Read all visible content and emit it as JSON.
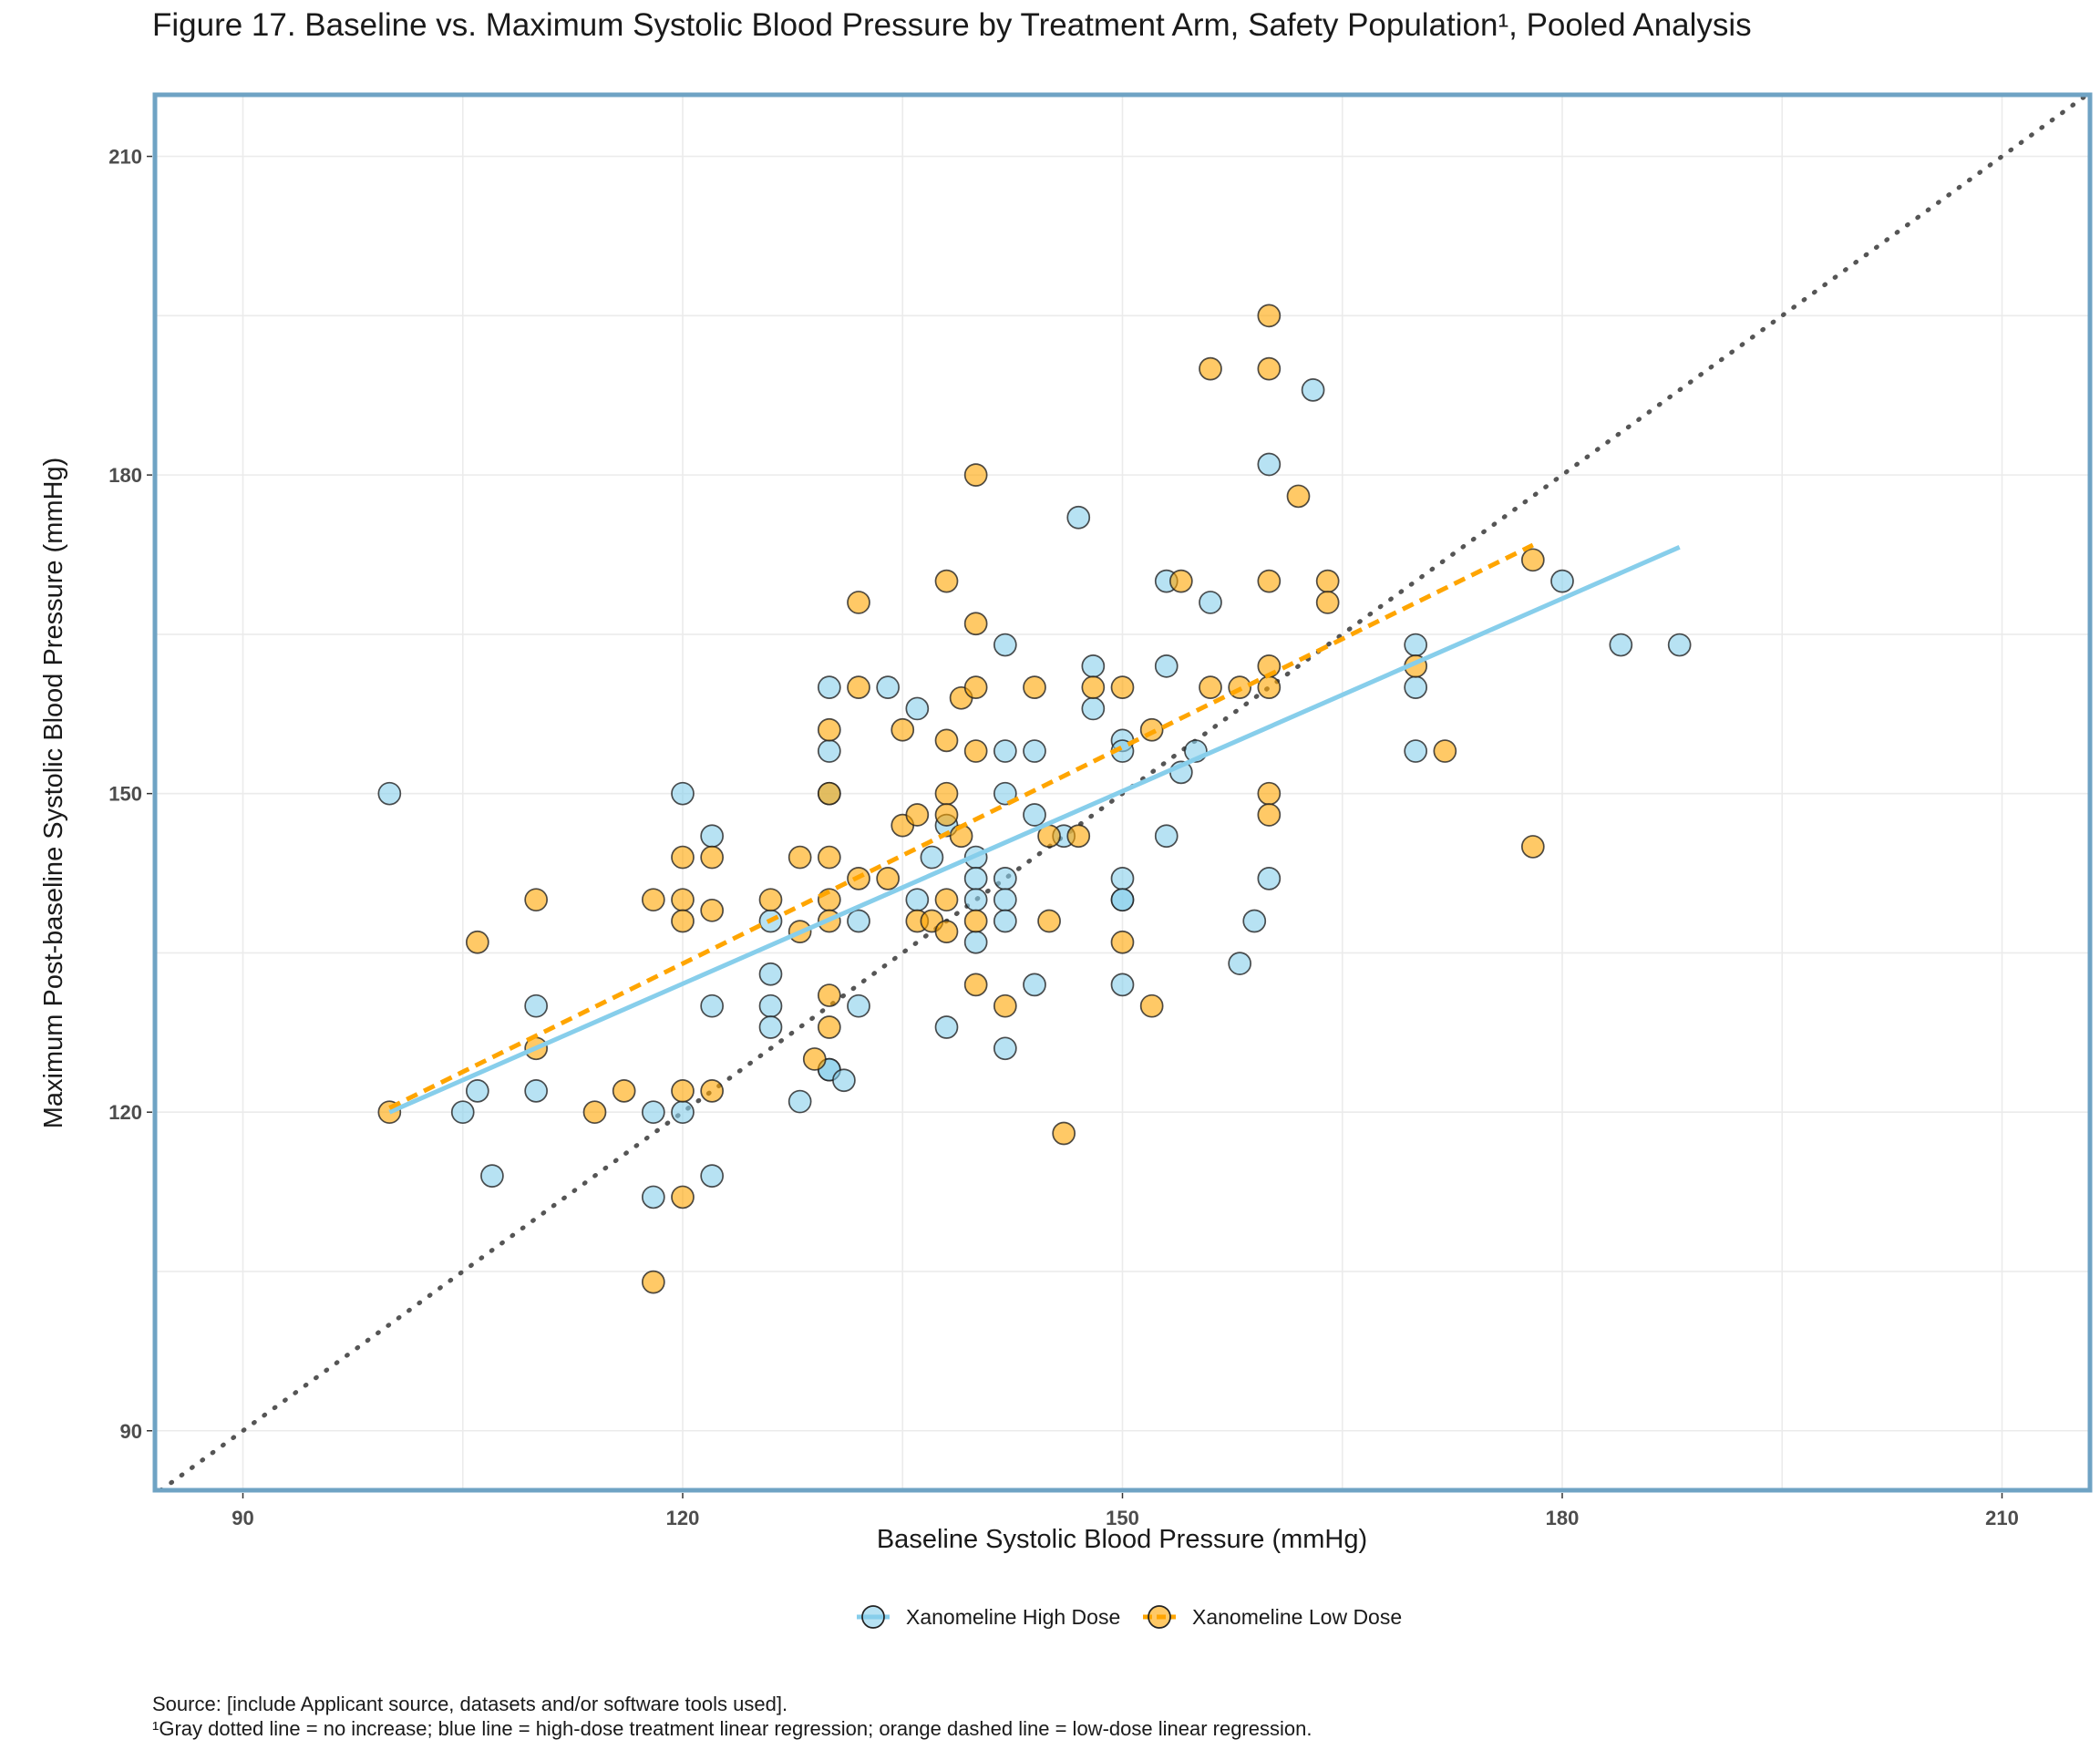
{
  "chart_data": {
    "type": "scatter",
    "title": "Figure 17. Baseline vs. Maximum Systolic Blood Pressure by Treatment Arm, Safety Population¹, Pooled Analysis",
    "xlabel": "Baseline Systolic Blood Pressure (mmHg)",
    "ylabel": "Maximum Post-baseline Systolic Blood Pressure (mmHg)",
    "xlim": [
      84,
      216
    ],
    "ylim": [
      84.4,
      215.8
    ],
    "x_ticks": [
      90,
      120,
      150,
      180,
      210
    ],
    "y_ticks": [
      90,
      120,
      150,
      180,
      210
    ],
    "grid": true,
    "legend_position": "bottom",
    "reference_line": {
      "type": "identity",
      "style": "dotted",
      "color": "#555555"
    },
    "series": [
      {
        "name": "Xanomeline High Dose",
        "color": "#87CEEB",
        "regression": {
          "style": "solid",
          "x": [
            100,
            188
          ],
          "y": [
            120,
            173.2
          ]
        },
        "points": [
          [
            100,
            150
          ],
          [
            105,
            120
          ],
          [
            106,
            122
          ],
          [
            107,
            114
          ],
          [
            110,
            130
          ],
          [
            110,
            122
          ],
          [
            118,
            120
          ],
          [
            118,
            112
          ],
          [
            120,
            150
          ],
          [
            120,
            120
          ],
          [
            122,
            146
          ],
          [
            122,
            130
          ],
          [
            122,
            114
          ],
          [
            126,
            138
          ],
          [
            126,
            133
          ],
          [
            126,
            130
          ],
          [
            126,
            128
          ],
          [
            128,
            121
          ],
          [
            130,
            160
          ],
          [
            130,
            154
          ],
          [
            130,
            150
          ],
          [
            130,
            124
          ],
          [
            130,
            124
          ],
          [
            131,
            123
          ],
          [
            132,
            138
          ],
          [
            132,
            130
          ],
          [
            134,
            160
          ],
          [
            136,
            158
          ],
          [
            136,
            140
          ],
          [
            137,
            144
          ],
          [
            138,
            147
          ],
          [
            138,
            128
          ],
          [
            140,
            144
          ],
          [
            140,
            142
          ],
          [
            140,
            140
          ],
          [
            140,
            136
          ],
          [
            142,
            164
          ],
          [
            142,
            154
          ],
          [
            142,
            150
          ],
          [
            142,
            142
          ],
          [
            142,
            140
          ],
          [
            142,
            138
          ],
          [
            142,
            126
          ],
          [
            144,
            154
          ],
          [
            144,
            148
          ],
          [
            144,
            132
          ],
          [
            146,
            146
          ],
          [
            147,
            176
          ],
          [
            148,
            162
          ],
          [
            148,
            158
          ],
          [
            150,
            155
          ],
          [
            150,
            154
          ],
          [
            150,
            142
          ],
          [
            150,
            140
          ],
          [
            150,
            140
          ],
          [
            150,
            132
          ],
          [
            153,
            170
          ],
          [
            153,
            162
          ],
          [
            153,
            146
          ],
          [
            154,
            152
          ],
          [
            155,
            154
          ],
          [
            156,
            168
          ],
          [
            158,
            134
          ],
          [
            159,
            138
          ],
          [
            160,
            181
          ],
          [
            160,
            142
          ],
          [
            163,
            188
          ],
          [
            170,
            164
          ],
          [
            170,
            160
          ],
          [
            170,
            154
          ],
          [
            180,
            170
          ],
          [
            184,
            164
          ],
          [
            188,
            164
          ]
        ]
      },
      {
        "name": "Xanomeline Low Dose",
        "color": "#FFA500",
        "regression": {
          "style": "dashed",
          "x": [
            100,
            178
          ],
          "y": [
            120.4,
            173.4
          ]
        },
        "points": [
          [
            100,
            120
          ],
          [
            106,
            136
          ],
          [
            110,
            140
          ],
          [
            110,
            126
          ],
          [
            114,
            120
          ],
          [
            116,
            122
          ],
          [
            118,
            140
          ],
          [
            118,
            104
          ],
          [
            120,
            144
          ],
          [
            120,
            140
          ],
          [
            120,
            138
          ],
          [
            120,
            122
          ],
          [
            120,
            112
          ],
          [
            122,
            144
          ],
          [
            122,
            139
          ],
          [
            122,
            122
          ],
          [
            126,
            140
          ],
          [
            128,
            144
          ],
          [
            128,
            137
          ],
          [
            129,
            125
          ],
          [
            130,
            156
          ],
          [
            130,
            150
          ],
          [
            130,
            144
          ],
          [
            130,
            140
          ],
          [
            130,
            138
          ],
          [
            130,
            131
          ],
          [
            130,
            128
          ],
          [
            132,
            168
          ],
          [
            132,
            160
          ],
          [
            132,
            142
          ],
          [
            134,
            142
          ],
          [
            135,
            156
          ],
          [
            135,
            147
          ],
          [
            136,
            148
          ],
          [
            136,
            138
          ],
          [
            137,
            138
          ],
          [
            138,
            170
          ],
          [
            138,
            155
          ],
          [
            138,
            150
          ],
          [
            138,
            148
          ],
          [
            138,
            140
          ],
          [
            138,
            137
          ],
          [
            139,
            159
          ],
          [
            139,
            146
          ],
          [
            140,
            180
          ],
          [
            140,
            166
          ],
          [
            140,
            160
          ],
          [
            140,
            154
          ],
          [
            140,
            138
          ],
          [
            140,
            132
          ],
          [
            142,
            130
          ],
          [
            144,
            160
          ],
          [
            145,
            146
          ],
          [
            145,
            138
          ],
          [
            146,
            118
          ],
          [
            147,
            146
          ],
          [
            148,
            160
          ],
          [
            150,
            160
          ],
          [
            150,
            136
          ],
          [
            152,
            156
          ],
          [
            152,
            130
          ],
          [
            154,
            170
          ],
          [
            156,
            190
          ],
          [
            156,
            160
          ],
          [
            158,
            160
          ],
          [
            160,
            195
          ],
          [
            160,
            190
          ],
          [
            160,
            170
          ],
          [
            160,
            162
          ],
          [
            160,
            160
          ],
          [
            160,
            150
          ],
          [
            160,
            148
          ],
          [
            162,
            178
          ],
          [
            164,
            170
          ],
          [
            164,
            168
          ],
          [
            170,
            162
          ],
          [
            172,
            154
          ],
          [
            178,
            172
          ],
          [
            178,
            145
          ]
        ]
      }
    ]
  },
  "footnotes": {
    "source": "Source: [include Applicant source, datasets and/or software tools used].",
    "note": "¹Gray dotted line = no increase; blue line = high-dose treatment linear regression; orange dashed line = low-dose linear regression."
  }
}
